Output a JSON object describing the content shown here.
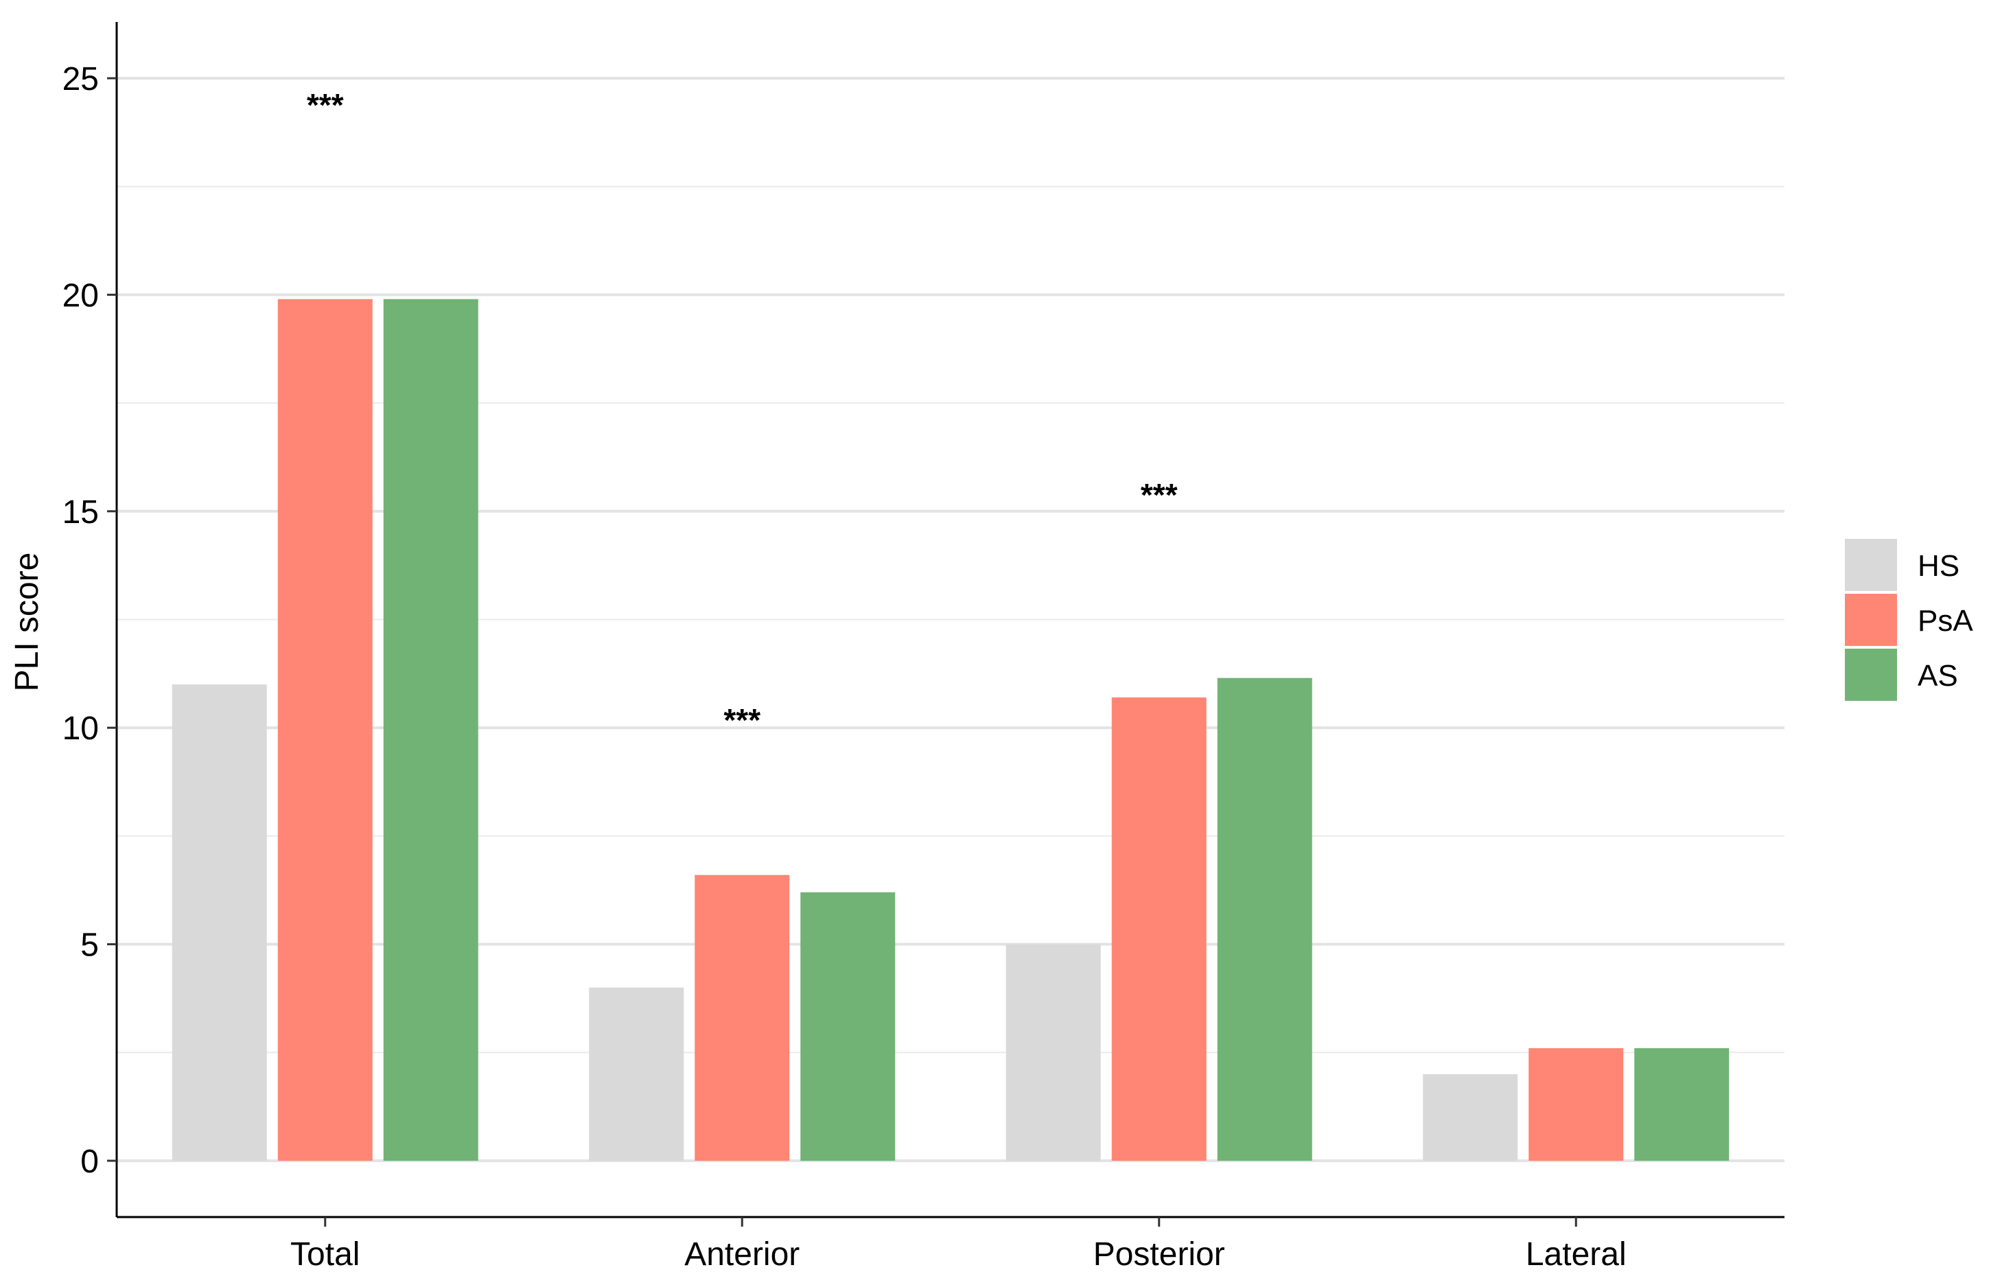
{
  "chart_data": {
    "type": "bar",
    "categories": [
      "Total",
      "Anterior",
      "Posterior",
      "Lateral"
    ],
    "series": [
      {
        "name": "HS",
        "color": "#D9D9D9",
        "values": [
          11.0,
          4.0,
          5.0,
          2.0
        ]
      },
      {
        "name": "PsA",
        "color": "#FF8674",
        "values": [
          19.9,
          6.6,
          10.7,
          2.6
        ]
      },
      {
        "name": "AS",
        "color": "#71B374",
        "values": [
          19.9,
          6.2,
          11.15,
          2.6
        ]
      }
    ],
    "ylabel": "PLI score",
    "xlabel": "",
    "ylim": [
      -1.3,
      26.3
    ],
    "yticks": [
      0,
      5,
      10,
      15,
      20,
      25
    ],
    "ytick_labels": [
      "0",
      "5",
      "10",
      "15",
      "20",
      "25"
    ],
    "minor_gridlines": [
      2.5,
      7.5,
      12.5,
      17.5,
      22.5
    ],
    "grid": true,
    "legend_position": "right",
    "annotations": [
      {
        "category": "Total",
        "text": "***",
        "y": 24.6
      },
      {
        "category": "Anterior",
        "text": "***",
        "y": 10.4
      },
      {
        "category": "Posterior",
        "text": "***",
        "y": 15.6
      }
    ]
  }
}
